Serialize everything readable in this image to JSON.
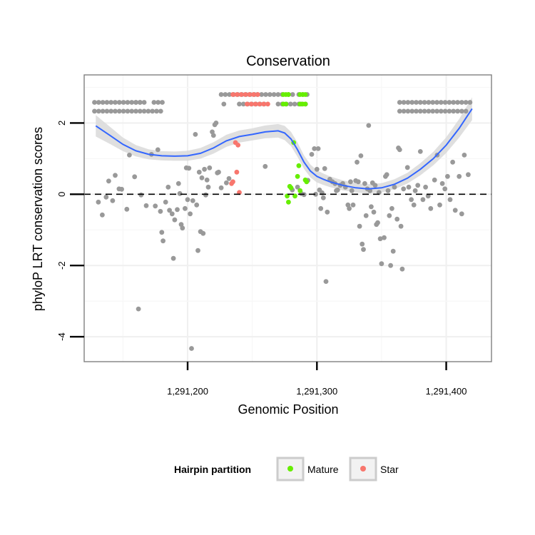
{
  "chart_data": {
    "type": "scatter",
    "title": "Conservation",
    "xlabel": "Genomic Position",
    "ylabel": "phyloP LRT conservation scores",
    "xlim": [
      1291120,
      1291435
    ],
    "ylim": [
      -4.7,
      3.35
    ],
    "xticks": [
      {
        "value": 1291200,
        "label": "1,291,200"
      },
      {
        "value": 1291300,
        "label": "1,291,300"
      },
      {
        "value": 1291400,
        "label": "1,291,400"
      }
    ],
    "yticks": [
      {
        "value": -4,
        "label": "-4"
      },
      {
        "value": -2,
        "label": "-2"
      },
      {
        "value": 0,
        "label": "0"
      },
      {
        "value": 2,
        "label": "2"
      }
    ],
    "reference_line": {
      "y": 0,
      "style": "dashed"
    },
    "grid": true,
    "legend": {
      "title": "Hairpin partition",
      "position": "bottom",
      "entries": [
        {
          "label": "Mature",
          "color": "#66ee00"
        },
        {
          "label": "Star",
          "color": "#f8766d"
        }
      ]
    },
    "colors": {
      "other": "#999999",
      "Mature": "#66ee00",
      "Star": "#f8766d",
      "smooth": "#3366ff",
      "band": "#d9d9d9"
    },
    "top_rows": [
      {
        "y": 2.58,
        "segments": [
          [
            1291128,
            1291168
          ],
          [
            1291174,
            1291182
          ],
          [
            1291160,
            1291166
          ]
        ]
      },
      {
        "y": 2.33,
        "segments": [
          [
            1291128,
            1291182
          ]
        ]
      },
      {
        "y": 2.8,
        "segments": [
          [
            1291226,
            1291252
          ],
          [
            1291254,
            1291276
          ],
          [
            1291278,
            1291282
          ],
          [
            1291286,
            1291294
          ]
        ]
      },
      {
        "y": 2.53,
        "segments": [
          [
            1291228,
            1291230
          ],
          [
            1291240,
            1291262
          ],
          [
            1291270,
            1291286
          ],
          [
            1291288,
            1291292
          ]
        ]
      },
      {
        "y": 2.58,
        "segments": [
          [
            1291364,
            1291420
          ]
        ]
      },
      {
        "y": 2.33,
        "segments": [
          [
            1291364,
            1291416
          ]
        ]
      }
    ],
    "top_row_spacing": 3.2,
    "mature_top_points": [
      {
        "x": 1291274,
        "y": 2.8
      },
      {
        "x": 1291276,
        "y": 2.8
      },
      {
        "x": 1291278,
        "y": 2.8
      },
      {
        "x": 1291287,
        "y": 2.8
      },
      {
        "x": 1291289,
        "y": 2.8
      },
      {
        "x": 1291291,
        "y": 2.8
      },
      {
        "x": 1291274,
        "y": 2.53
      },
      {
        "x": 1291276,
        "y": 2.53
      },
      {
        "x": 1291287,
        "y": 2.53
      },
      {
        "x": 1291289,
        "y": 2.53
      },
      {
        "x": 1291291,
        "y": 2.53
      }
    ],
    "star_top_segments": [
      {
        "y": 2.8,
        "segments": [
          [
            1291235,
            1291256
          ]
        ]
      },
      {
        "y": 2.53,
        "segments": [
          [
            1291246,
            1291262
          ]
        ]
      }
    ],
    "points": [
      {
        "x": 1291131,
        "y": -0.22,
        "group": "other"
      },
      {
        "x": 1291134,
        "y": -0.58,
        "group": "other"
      },
      {
        "x": 1291137,
        "y": -0.08,
        "group": "other"
      },
      {
        "x": 1291139,
        "y": 0.37,
        "group": "other"
      },
      {
        "x": 1291142,
        "y": -0.18,
        "group": "other"
      },
      {
        "x": 1291144,
        "y": 0.53,
        "group": "other"
      },
      {
        "x": 1291147,
        "y": 0.15,
        "group": "other"
      },
      {
        "x": 1291149,
        "y": 0.14,
        "group": "other"
      },
      {
        "x": 1291153,
        "y": -0.42,
        "group": "other"
      },
      {
        "x": 1291155,
        "y": 1.1,
        "group": "other"
      },
      {
        "x": 1291159,
        "y": 0.49,
        "group": "other"
      },
      {
        "x": 1291162,
        "y": -3.22,
        "group": "other"
      },
      {
        "x": 1291164,
        "y": -0.02,
        "group": "other"
      },
      {
        "x": 1291168,
        "y": -0.32,
        "group": "other"
      },
      {
        "x": 1291172,
        "y": 1.12,
        "group": "other"
      },
      {
        "x": 1291175,
        "y": -0.33,
        "group": "other"
      },
      {
        "x": 1291177,
        "y": 1.25,
        "group": "other"
      },
      {
        "x": 1291179,
        "y": -0.48,
        "group": "other"
      },
      {
        "x": 1291180,
        "y": -1.07,
        "group": "other"
      },
      {
        "x": 1291181,
        "y": -1.31,
        "group": "other"
      },
      {
        "x": 1291183,
        "y": -0.22,
        "group": "other"
      },
      {
        "x": 1291185,
        "y": 0.2,
        "group": "other"
      },
      {
        "x": 1291186,
        "y": -0.45,
        "group": "other"
      },
      {
        "x": 1291188,
        "y": -0.55,
        "group": "other"
      },
      {
        "x": 1291189,
        "y": -1.8,
        "group": "other"
      },
      {
        "x": 1291190,
        "y": -0.72,
        "group": "other"
      },
      {
        "x": 1291192,
        "y": -0.43,
        "group": "other"
      },
      {
        "x": 1291193,
        "y": 0.3,
        "group": "other"
      },
      {
        "x": 1291194,
        "y": 0.02,
        "group": "other"
      },
      {
        "x": 1291195,
        "y": -0.85,
        "group": "other"
      },
      {
        "x": 1291196,
        "y": -0.95,
        "group": "other"
      },
      {
        "x": 1291198,
        "y": -0.4,
        "group": "other"
      },
      {
        "x": 1291199,
        "y": 0.74,
        "group": "other"
      },
      {
        "x": 1291200,
        "y": -0.15,
        "group": "other"
      },
      {
        "x": 1291201,
        "y": 0.73,
        "group": "other"
      },
      {
        "x": 1291202,
        "y": -0.55,
        "group": "other"
      },
      {
        "x": 1291203,
        "y": -4.33,
        "group": "other"
      },
      {
        "x": 1291204,
        "y": -0.18,
        "group": "other"
      },
      {
        "x": 1291206,
        "y": 1.68,
        "group": "other"
      },
      {
        "x": 1291207,
        "y": -0.3,
        "group": "other"
      },
      {
        "x": 1291208,
        "y": -1.58,
        "group": "other"
      },
      {
        "x": 1291209,
        "y": 0.62,
        "group": "other"
      },
      {
        "x": 1291210,
        "y": -1.05,
        "group": "other"
      },
      {
        "x": 1291211,
        "y": 0.46,
        "group": "other"
      },
      {
        "x": 1291212,
        "y": -1.1,
        "group": "other"
      },
      {
        "x": 1291213,
        "y": 0.7,
        "group": "other"
      },
      {
        "x": 1291214,
        "y": -0.02,
        "group": "other"
      },
      {
        "x": 1291215,
        "y": 0.4,
        "group": "other"
      },
      {
        "x": 1291216,
        "y": 0.2,
        "group": "other"
      },
      {
        "x": 1291217,
        "y": 0.74,
        "group": "other"
      },
      {
        "x": 1291219,
        "y": 1.75,
        "group": "other"
      },
      {
        "x": 1291220,
        "y": 1.65,
        "group": "other"
      },
      {
        "x": 1291221,
        "y": 1.95,
        "group": "other"
      },
      {
        "x": 1291222,
        "y": 2.0,
        "group": "other"
      },
      {
        "x": 1291223,
        "y": 0.6,
        "group": "other"
      },
      {
        "x": 1291224,
        "y": 0.62,
        "group": "other"
      },
      {
        "x": 1291226,
        "y": 0.18,
        "group": "other"
      },
      {
        "x": 1291230,
        "y": 0.32,
        "group": "other"
      },
      {
        "x": 1291232,
        "y": 0.44,
        "group": "other"
      },
      {
        "x": 1291260,
        "y": 0.78,
        "group": "other"
      },
      {
        "x": 1291281,
        "y": 0.12,
        "group": "other"
      },
      {
        "x": 1291285,
        "y": 0.2,
        "group": "other"
      },
      {
        "x": 1291288,
        "y": 0.02,
        "group": "other"
      },
      {
        "x": 1291290,
        "y": -0.01,
        "group": "other"
      },
      {
        "x": 1291293,
        "y": 0.39,
        "group": "other"
      },
      {
        "x": 1291296,
        "y": 1.12,
        "group": "other"
      },
      {
        "x": 1291298,
        "y": 1.28,
        "group": "other"
      },
      {
        "x": 1291299,
        "y": 0.0,
        "group": "other"
      },
      {
        "x": 1291300,
        "y": 0.7,
        "group": "other"
      },
      {
        "x": 1291301,
        "y": 1.28,
        "group": "other"
      },
      {
        "x": 1291302,
        "y": 0.12,
        "group": "other"
      },
      {
        "x": 1291303,
        "y": -0.4,
        "group": "other"
      },
      {
        "x": 1291304,
        "y": 0.04,
        "group": "other"
      },
      {
        "x": 1291305,
        "y": -0.1,
        "group": "other"
      },
      {
        "x": 1291306,
        "y": 0.72,
        "group": "other"
      },
      {
        "x": 1291307,
        "y": -2.45,
        "group": "other"
      },
      {
        "x": 1291308,
        "y": -0.5,
        "group": "other"
      },
      {
        "x": 1291310,
        "y": 0.42,
        "group": "other"
      },
      {
        "x": 1291312,
        "y": 0.35,
        "group": "other"
      },
      {
        "x": 1291314,
        "y": 0.3,
        "group": "other"
      },
      {
        "x": 1291315,
        "y": 0.1,
        "group": "other"
      },
      {
        "x": 1291316,
        "y": 0.12,
        "group": "other"
      },
      {
        "x": 1291318,
        "y": 0.25,
        "group": "other"
      },
      {
        "x": 1291320,
        "y": 0.3,
        "group": "other"
      },
      {
        "x": 1291322,
        "y": 0.2,
        "group": "other"
      },
      {
        "x": 1291324,
        "y": -0.3,
        "group": "other"
      },
      {
        "x": 1291325,
        "y": -0.4,
        "group": "other"
      },
      {
        "x": 1291326,
        "y": 0.35,
        "group": "other"
      },
      {
        "x": 1291327,
        "y": 0.1,
        "group": "other"
      },
      {
        "x": 1291328,
        "y": -0.3,
        "group": "other"
      },
      {
        "x": 1291330,
        "y": 0.38,
        "group": "other"
      },
      {
        "x": 1291331,
        "y": 0.9,
        "group": "other"
      },
      {
        "x": 1291332,
        "y": 0.35,
        "group": "other"
      },
      {
        "x": 1291333,
        "y": -0.9,
        "group": "other"
      },
      {
        "x": 1291334,
        "y": 1.08,
        "group": "other"
      },
      {
        "x": 1291335,
        "y": -1.4,
        "group": "other"
      },
      {
        "x": 1291336,
        "y": -1.55,
        "group": "other"
      },
      {
        "x": 1291337,
        "y": 0.3,
        "group": "other"
      },
      {
        "x": 1291338,
        "y": -0.6,
        "group": "other"
      },
      {
        "x": 1291339,
        "y": 0.15,
        "group": "other"
      },
      {
        "x": 1291340,
        "y": 1.93,
        "group": "other"
      },
      {
        "x": 1291341,
        "y": 0.1,
        "group": "other"
      },
      {
        "x": 1291342,
        "y": -0.35,
        "group": "other"
      },
      {
        "x": 1291343,
        "y": 0.32,
        "group": "other"
      },
      {
        "x": 1291344,
        "y": -0.5,
        "group": "other"
      },
      {
        "x": 1291345,
        "y": 0.25,
        "group": "other"
      },
      {
        "x": 1291346,
        "y": -0.85,
        "group": "other"
      },
      {
        "x": 1291347,
        "y": -0.8,
        "group": "other"
      },
      {
        "x": 1291348,
        "y": 0.05,
        "group": "other"
      },
      {
        "x": 1291349,
        "y": -1.25,
        "group": "other"
      },
      {
        "x": 1291350,
        "y": -1.95,
        "group": "other"
      },
      {
        "x": 1291352,
        "y": -1.22,
        "group": "other"
      },
      {
        "x": 1291353,
        "y": 0.5,
        "group": "other"
      },
      {
        "x": 1291354,
        "y": 0.55,
        "group": "other"
      },
      {
        "x": 1291355,
        "y": 0.1,
        "group": "other"
      },
      {
        "x": 1291356,
        "y": -0.6,
        "group": "other"
      },
      {
        "x": 1291357,
        "y": -2.0,
        "group": "other"
      },
      {
        "x": 1291358,
        "y": -0.4,
        "group": "other"
      },
      {
        "x": 1291359,
        "y": -1.6,
        "group": "other"
      },
      {
        "x": 1291360,
        "y": 0.2,
        "group": "other"
      },
      {
        "x": 1291362,
        "y": -0.7,
        "group": "other"
      },
      {
        "x": 1291363,
        "y": 1.3,
        "group": "other"
      },
      {
        "x": 1291364,
        "y": 1.25,
        "group": "other"
      },
      {
        "x": 1291365,
        "y": -0.9,
        "group": "other"
      },
      {
        "x": 1291366,
        "y": -2.1,
        "group": "other"
      },
      {
        "x": 1291367,
        "y": 0.15,
        "group": "other"
      },
      {
        "x": 1291370,
        "y": 0.75,
        "group": "other"
      },
      {
        "x": 1291371,
        "y": 0.2,
        "group": "other"
      },
      {
        "x": 1291373,
        "y": -0.15,
        "group": "other"
      },
      {
        "x": 1291375,
        "y": -0.3,
        "group": "other"
      },
      {
        "x": 1291376,
        "y": 0.1,
        "group": "other"
      },
      {
        "x": 1291378,
        "y": 0.25,
        "group": "other"
      },
      {
        "x": 1291380,
        "y": 1.2,
        "group": "other"
      },
      {
        "x": 1291382,
        "y": -0.15,
        "group": "other"
      },
      {
        "x": 1291384,
        "y": 0.2,
        "group": "other"
      },
      {
        "x": 1291386,
        "y": -0.05,
        "group": "other"
      },
      {
        "x": 1291388,
        "y": -0.4,
        "group": "other"
      },
      {
        "x": 1291391,
        "y": 0.4,
        "group": "other"
      },
      {
        "x": 1291393,
        "y": 1.1,
        "group": "other"
      },
      {
        "x": 1291395,
        "y": -0.3,
        "group": "other"
      },
      {
        "x": 1291397,
        "y": 0.3,
        "group": "other"
      },
      {
        "x": 1291399,
        "y": 0.15,
        "group": "other"
      },
      {
        "x": 1291401,
        "y": 0.5,
        "group": "other"
      },
      {
        "x": 1291403,
        "y": -0.15,
        "group": "other"
      },
      {
        "x": 1291405,
        "y": 0.9,
        "group": "other"
      },
      {
        "x": 1291407,
        "y": -0.45,
        "group": "other"
      },
      {
        "x": 1291410,
        "y": 0.5,
        "group": "other"
      },
      {
        "x": 1291412,
        "y": -0.55,
        "group": "other"
      },
      {
        "x": 1291414,
        "y": 1.1,
        "group": "other"
      },
      {
        "x": 1291417,
        "y": 0.55,
        "group": "other"
      },
      {
        "x": 1291234,
        "y": 0.3,
        "group": "Star"
      },
      {
        "x": 1291235,
        "y": 0.35,
        "group": "Star"
      },
      {
        "x": 1291237,
        "y": 1.45,
        "group": "Star"
      },
      {
        "x": 1291238,
        "y": 0.62,
        "group": "Star"
      },
      {
        "x": 1291239,
        "y": 1.38,
        "group": "Star"
      },
      {
        "x": 1291240,
        "y": 0.05,
        "group": "Star"
      },
      {
        "x": 1291277,
        "y": -0.05,
        "group": "Mature"
      },
      {
        "x": 1291278,
        "y": -0.22,
        "group": "Mature"
      },
      {
        "x": 1291279,
        "y": 0.22,
        "group": "Mature"
      },
      {
        "x": 1291280,
        "y": 0.18,
        "group": "Mature"
      },
      {
        "x": 1291282,
        "y": 1.45,
        "group": "Mature"
      },
      {
        "x": 1291283,
        "y": -0.05,
        "group": "Mature"
      },
      {
        "x": 1291285,
        "y": 0.5,
        "group": "Mature"
      },
      {
        "x": 1291286,
        "y": 0.8,
        "group": "Mature"
      },
      {
        "x": 1291287,
        "y": 0.1,
        "group": "Mature"
      },
      {
        "x": 1291291,
        "y": 0.4,
        "group": "Mature"
      },
      {
        "x": 1291292,
        "y": 0.35,
        "group": "Mature"
      }
    ],
    "smooth": {
      "x": [
        1291129,
        1291140,
        1291150,
        1291160,
        1291170,
        1291180,
        1291190,
        1291200,
        1291210,
        1291220,
        1291230,
        1291240,
        1291250,
        1291260,
        1291270,
        1291275,
        1291280,
        1291285,
        1291290,
        1291295,
        1291300,
        1291305,
        1291310,
        1291320,
        1291330,
        1291340,
        1291350,
        1291360,
        1291370,
        1291380,
        1291390,
        1291400,
        1291410,
        1291420
      ],
      "y": [
        1.92,
        1.65,
        1.4,
        1.22,
        1.12,
        1.08,
        1.07,
        1.08,
        1.15,
        1.3,
        1.5,
        1.62,
        1.68,
        1.75,
        1.78,
        1.72,
        1.55,
        1.25,
        0.9,
        0.65,
        0.5,
        0.42,
        0.35,
        0.25,
        0.18,
        0.15,
        0.18,
        0.28,
        0.45,
        0.7,
        1.0,
        1.38,
        1.85,
        2.4
      ],
      "se": [
        0.3,
        0.24,
        0.19,
        0.16,
        0.14,
        0.13,
        0.13,
        0.14,
        0.15,
        0.16,
        0.17,
        0.17,
        0.17,
        0.18,
        0.19,
        0.2,
        0.2,
        0.2,
        0.19,
        0.18,
        0.17,
        0.16,
        0.15,
        0.14,
        0.13,
        0.13,
        0.13,
        0.14,
        0.15,
        0.17,
        0.19,
        0.22,
        0.26,
        0.32
      ]
    }
  }
}
